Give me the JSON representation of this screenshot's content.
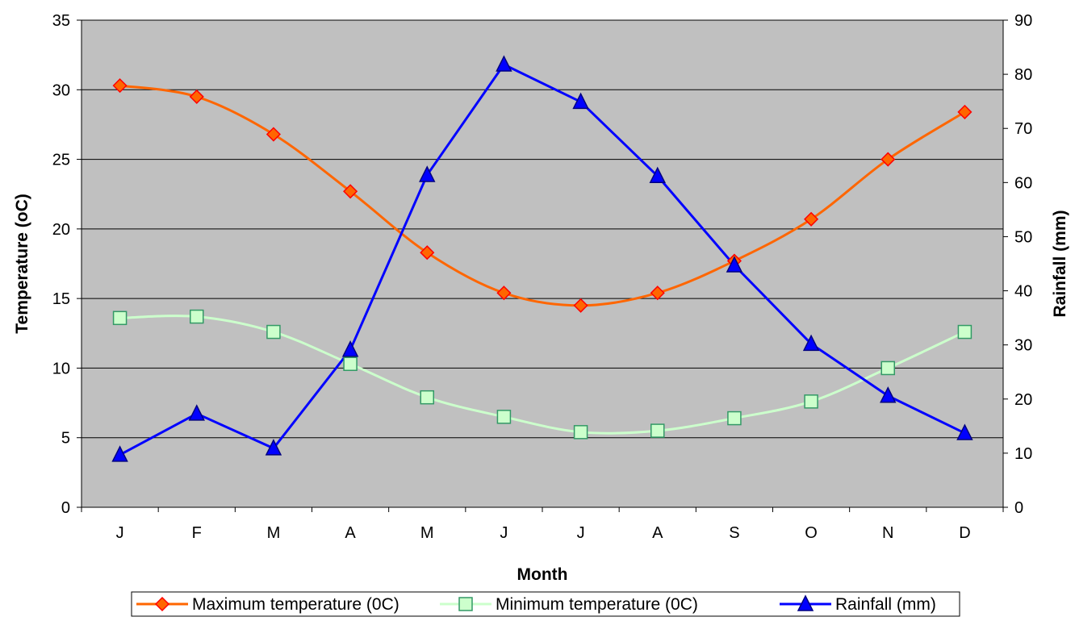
{
  "chart_data": {
    "type": "line",
    "title": "",
    "xlabel": "Month",
    "ylabel": "Temperature (oC)",
    "y2label": "Rainfall (mm)",
    "categories": [
      "J",
      "F",
      "M",
      "A",
      "M",
      "J",
      "J",
      "A",
      "S",
      "O",
      "N",
      "D"
    ],
    "ylim": [
      0,
      35
    ],
    "y2lim": [
      0,
      90
    ],
    "yticks": [
      "0",
      "5",
      "10",
      "15",
      "20",
      "25",
      "30",
      "35"
    ],
    "y2ticks": [
      "0",
      "10",
      "20",
      "30",
      "40",
      "50",
      "60",
      "70",
      "80",
      "90"
    ],
    "grid": true,
    "legend_position": "bottom",
    "plot_background": "#c0c0c0",
    "series": [
      {
        "name": "Maximum temperature (0C)",
        "axis": "left",
        "color": "#ff6600",
        "marker": "diamond",
        "marker_fill": "#ff6600",
        "marker_stroke": "#ff0000",
        "values": [
          30.3,
          29.5,
          26.8,
          22.7,
          18.3,
          15.4,
          14.5,
          15.4,
          17.7,
          20.7,
          25.0,
          28.4
        ]
      },
      {
        "name": "Minimum temperature (0C)",
        "axis": "left",
        "color": "#ccffcc",
        "marker": "square",
        "marker_fill": "#ccffcc",
        "marker_stroke": "#339966",
        "values": [
          13.6,
          13.7,
          12.6,
          10.3,
          7.9,
          6.5,
          5.4,
          5.5,
          6.4,
          7.6,
          10.0,
          12.6
        ]
      },
      {
        "name": "Rainfall (mm)",
        "axis": "right",
        "color": "#0000ff",
        "marker": "triangle",
        "marker_fill": "#0000ff",
        "marker_stroke": "#000080",
        "values": [
          9.7,
          17.3,
          10.9,
          29.1,
          61.4,
          81.8,
          74.9,
          61.2,
          44.7,
          30.2,
          20.6,
          13.7
        ]
      }
    ]
  }
}
